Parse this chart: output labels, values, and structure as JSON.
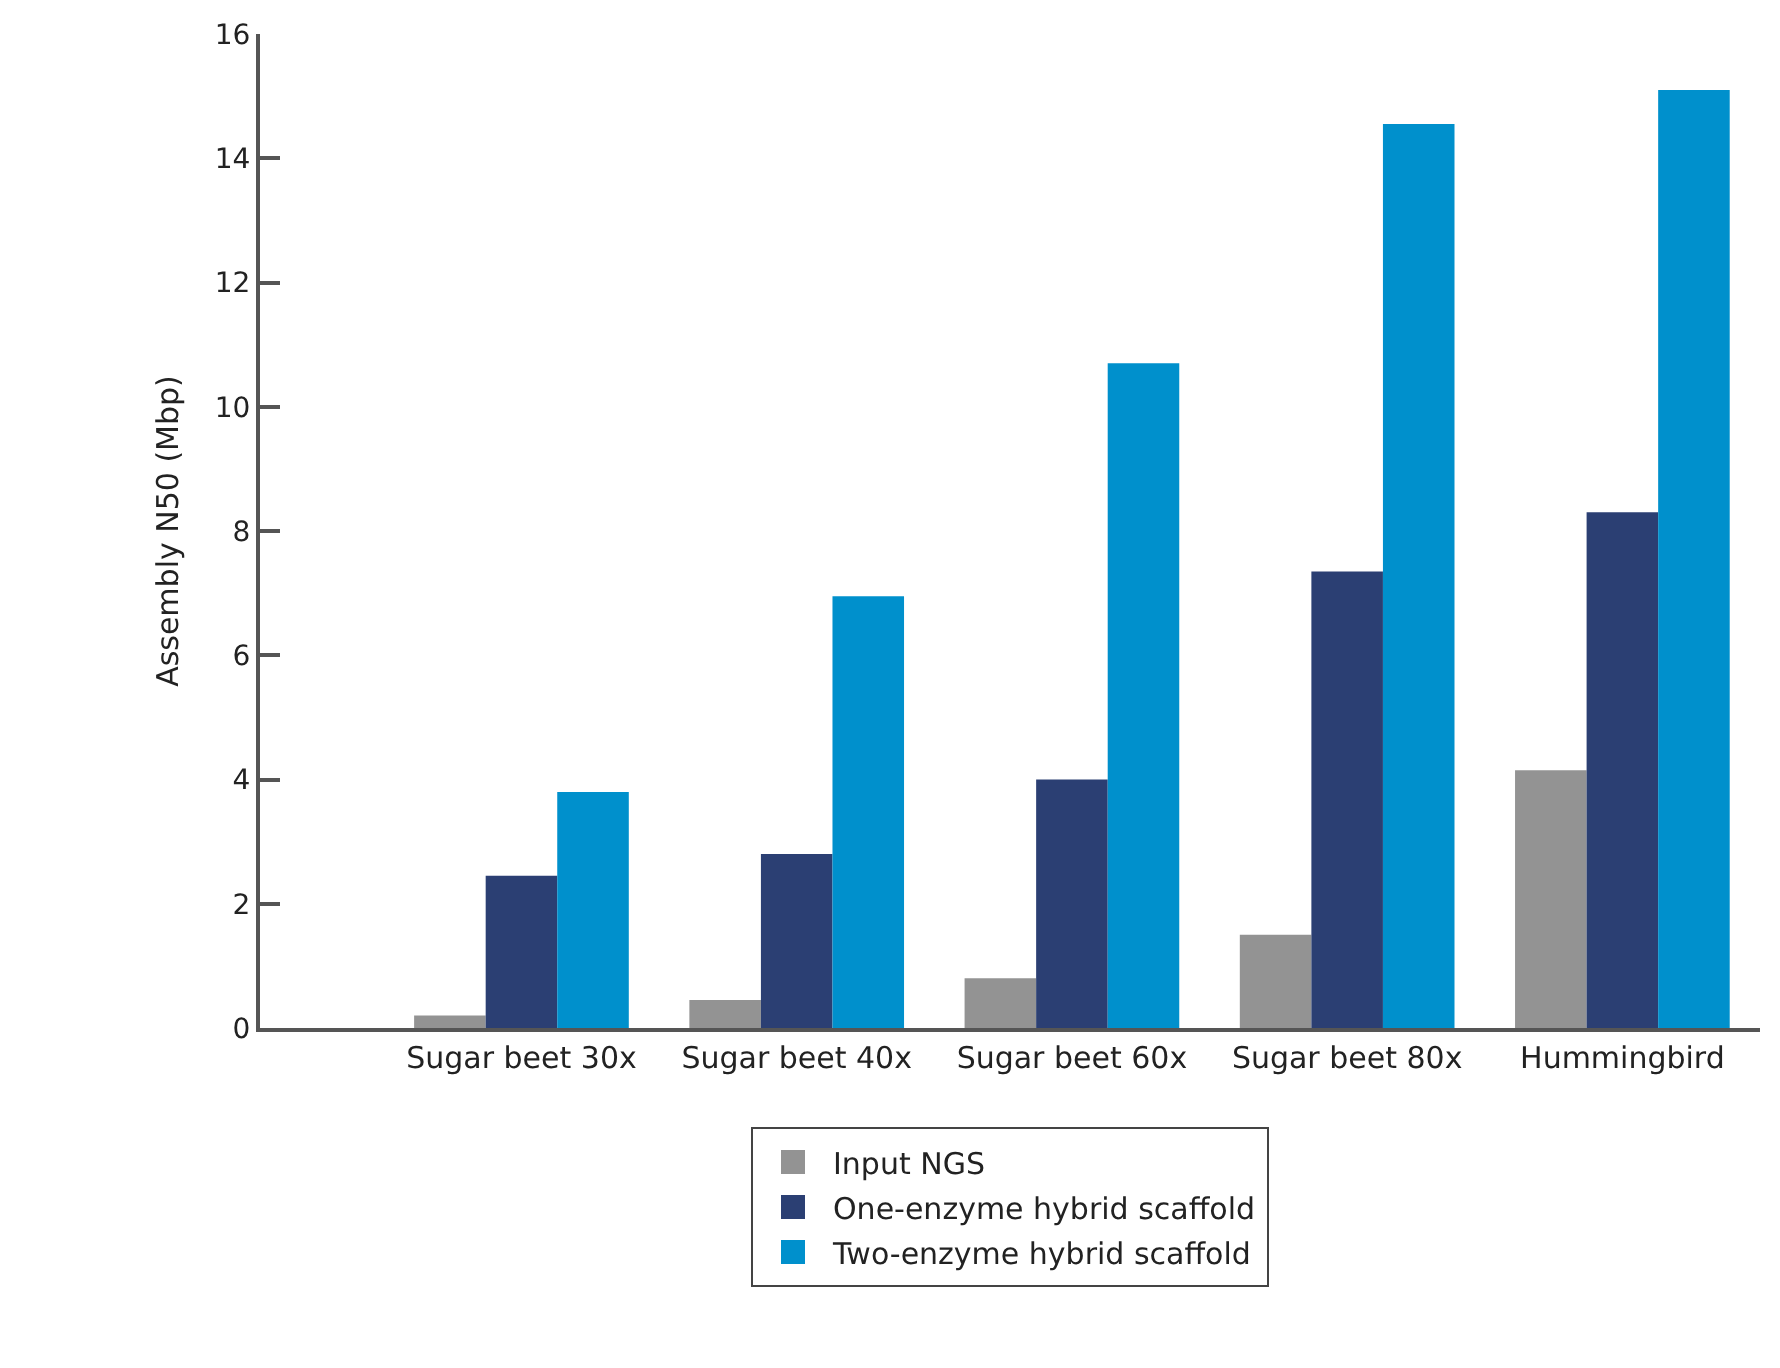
{
  "chart_data": {
    "type": "bar",
    "ylabel": "Assembly N50 (Mbp)",
    "categories": [
      "Sugar beet 30x",
      "Sugar beet 40x",
      "Sugar beet 60x",
      "Sugar beet 80x",
      "Hummingbird"
    ],
    "series": [
      {
        "name": "Input NGS",
        "color": "#939393",
        "values": [
          0.2,
          0.45,
          0.8,
          1.5,
          4.15
        ]
      },
      {
        "name": "One-enzyme hybrid scaffold",
        "color": "#2b3f73",
        "values": [
          2.45,
          2.8,
          4.0,
          7.35,
          8.3
        ]
      },
      {
        "name": "Two-enzyme hybrid scaffold",
        "color": "#0090cc",
        "values": [
          3.8,
          6.95,
          10.7,
          14.55,
          15.1
        ]
      }
    ],
    "ylim": [
      0,
      16
    ],
    "yticks": [
      0,
      2,
      4,
      6,
      8,
      10,
      12,
      14,
      16
    ],
    "legend": "bottom"
  }
}
